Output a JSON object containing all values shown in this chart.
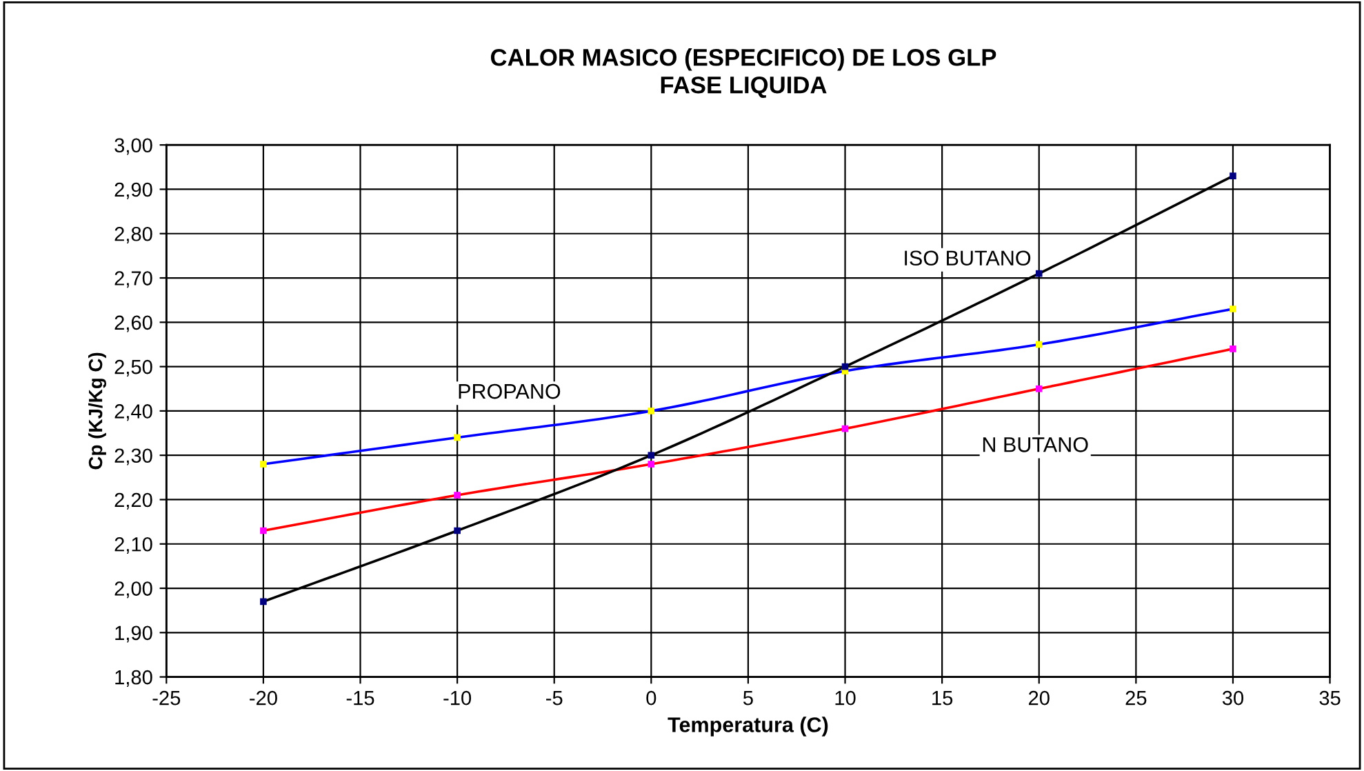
{
  "chart_data": {
    "type": "line",
    "title": "CALOR MASICO (ESPECIFICO) DE LOS GLP\nFASE LIQUIDA",
    "xlabel": "Temperatura (C)",
    "ylabel": "Cp (KJ/Kg C)",
    "x": [
      -20,
      -10,
      0,
      10,
      20,
      30
    ],
    "series": [
      {
        "name": "PROPANO",
        "color": "#0000ff",
        "colors": [
          "#ffff00",
          "#ffff00",
          "#ffff00",
          "#ffff00",
          "#ffff00",
          "#ffff00"
        ],
        "values": [
          2.28,
          2.34,
          2.4,
          2.49,
          2.55,
          2.63
        ]
      },
      {
        "name": "N BUTANO",
        "color": "#ff0000",
        "colors": [
          "#ff00ff",
          "#ff00ff",
          "#ff00ff",
          "#ff00ff",
          "#ff00ff",
          "#ff00ff"
        ],
        "values": [
          2.13,
          2.21,
          2.28,
          2.36,
          2.45,
          2.54
        ]
      },
      {
        "name": "ISO BUTANO",
        "color": "#000000",
        "colors": [
          "#000080",
          "#000080",
          "#000080",
          "#000080",
          "#000080",
          "#000080"
        ],
        "values": [
          1.97,
          2.13,
          2.3,
          2.5,
          2.71,
          2.93
        ]
      }
    ],
    "xlim": [
      -25,
      35
    ],
    "xticks": [
      -25,
      -20,
      -15,
      -10,
      -5,
      0,
      5,
      10,
      15,
      20,
      25,
      30,
      35
    ],
    "ylim": [
      1.8,
      3.0
    ],
    "yticks": [
      {
        "value": 1.8,
        "label": "1,80"
      },
      {
        "value": 1.9,
        "label": "1,90"
      },
      {
        "value": 2.0,
        "label": "2,00"
      },
      {
        "value": 2.1,
        "label": "2,10"
      },
      {
        "value": 2.2,
        "label": "2,20"
      },
      {
        "value": 2.3,
        "label": "2,30"
      },
      {
        "value": 2.4,
        "label": "2,40"
      },
      {
        "value": 2.5,
        "label": "2,50"
      },
      {
        "value": 2.6,
        "label": "2,60"
      },
      {
        "value": 2.7,
        "label": "2,70"
      },
      {
        "value": 2.8,
        "label": "2,80"
      },
      {
        "value": 2.9,
        "label": "2,90"
      },
      {
        "value": 3.0,
        "label": "3,00"
      }
    ],
    "grid": true,
    "marker": "square",
    "line_style": "solid"
  }
}
